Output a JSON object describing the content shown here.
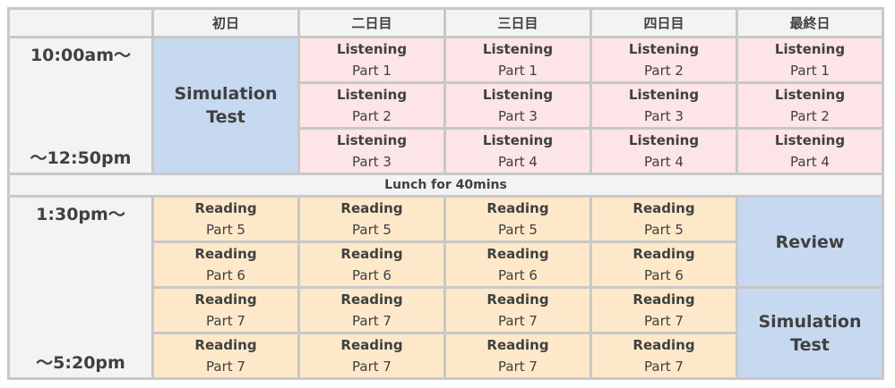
{
  "header": {
    "corner": "",
    "days": [
      "初日",
      "二日目",
      "三日目",
      "四日目",
      "最終日"
    ]
  },
  "morning": {
    "start": "10:00am～",
    "end": "～12:50pm",
    "day1": {
      "line1": "Simulation",
      "line2": "Test"
    },
    "rows": [
      [
        {
          "title": "Listening",
          "part": "Part 1"
        },
        {
          "title": "Listening",
          "part": "Part 1"
        },
        {
          "title": "Listening",
          "part": "Part 2"
        },
        {
          "title": "Listening",
          "part": "Part 1"
        }
      ],
      [
        {
          "title": "Listening",
          "part": "Part 2"
        },
        {
          "title": "Listening",
          "part": "Part 3"
        },
        {
          "title": "Listening",
          "part": "Part 3"
        },
        {
          "title": "Listening",
          "part": "Part 2"
        }
      ],
      [
        {
          "title": "Listening",
          "part": "Part 3"
        },
        {
          "title": "Listening",
          "part": "Part 4"
        },
        {
          "title": "Listening",
          "part": "Part 4"
        },
        {
          "title": "Listening",
          "part": "Part 4"
        }
      ]
    ]
  },
  "lunch": "Lunch for 40mins",
  "afternoon": {
    "start": "1:30pm～",
    "end": "～5:20pm",
    "rows": [
      [
        {
          "title": "Reading",
          "part": "Part 5"
        },
        {
          "title": "Reading",
          "part": "Part 5"
        },
        {
          "title": "Reading",
          "part": "Part 5"
        },
        {
          "title": "Reading",
          "part": "Part 5"
        }
      ],
      [
        {
          "title": "Reading",
          "part": "Part 6"
        },
        {
          "title": "Reading",
          "part": "Part 6"
        },
        {
          "title": "Reading",
          "part": "Part 6"
        },
        {
          "title": "Reading",
          "part": "Part 6"
        }
      ],
      [
        {
          "title": "Reading",
          "part": "Part 7"
        },
        {
          "title": "Reading",
          "part": "Part 7"
        },
        {
          "title": "Reading",
          "part": "Part 7"
        },
        {
          "title": "Reading",
          "part": "Part 7"
        }
      ],
      [
        {
          "title": "Reading",
          "part": "Part 7"
        },
        {
          "title": "Reading",
          "part": "Part 7"
        },
        {
          "title": "Reading",
          "part": "Part 7"
        },
        {
          "title": "Reading",
          "part": "Part 7"
        }
      ]
    ],
    "final_review": "Review",
    "final_test": {
      "line1": "Simulation",
      "line2": "Test"
    }
  },
  "colors": {
    "listening": "#fde4e6",
    "reading": "#fde9c9",
    "test": "#c6d9f1",
    "header": "#f3f3f3",
    "border": "#c8c8c8"
  }
}
